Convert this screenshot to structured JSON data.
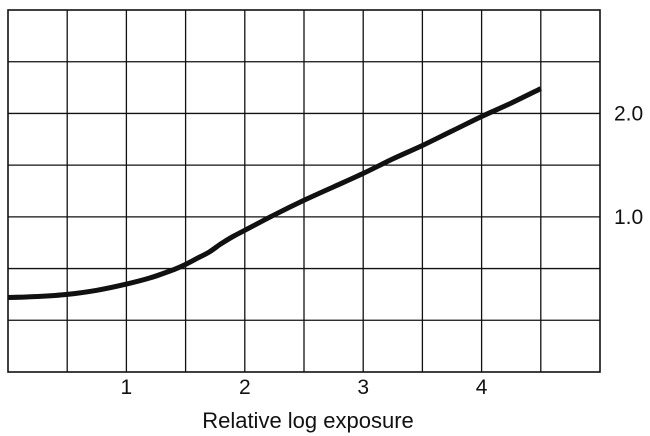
{
  "chart_data": {
    "type": "line",
    "title": "",
    "xlabel": "Relative log exposure",
    "ylabel": "",
    "xlim": [
      0,
      5
    ],
    "ylim": [
      -0.5,
      3.0
    ],
    "grid": true,
    "grid_x_step": 0.5,
    "grid_y_step": 0.5,
    "x_ticks": [
      {
        "value": 1,
        "label": "1"
      },
      {
        "value": 2,
        "label": "2"
      },
      {
        "value": 3,
        "label": "3"
      },
      {
        "value": 4,
        "label": "4"
      }
    ],
    "y_ticks": [
      {
        "value": 1.0,
        "label": "1.0"
      },
      {
        "value": 2.0,
        "label": "2.0"
      }
    ],
    "y_tick_side": "right",
    "series": [
      {
        "color": "#111111",
        "x": [
          0.0,
          0.25,
          0.5,
          0.75,
          1.0,
          1.2,
          1.4,
          1.5,
          1.6,
          1.7,
          1.8,
          1.9,
          2.0,
          2.25,
          2.5,
          2.75,
          3.0,
          3.25,
          3.5,
          3.75,
          4.0,
          4.25,
          4.5
        ],
        "y": [
          0.22,
          0.23,
          0.25,
          0.29,
          0.35,
          0.41,
          0.49,
          0.54,
          0.6,
          0.66,
          0.74,
          0.81,
          0.87,
          1.02,
          1.16,
          1.29,
          1.42,
          1.56,
          1.69,
          1.83,
          1.97,
          2.1,
          2.24
        ]
      }
    ]
  }
}
